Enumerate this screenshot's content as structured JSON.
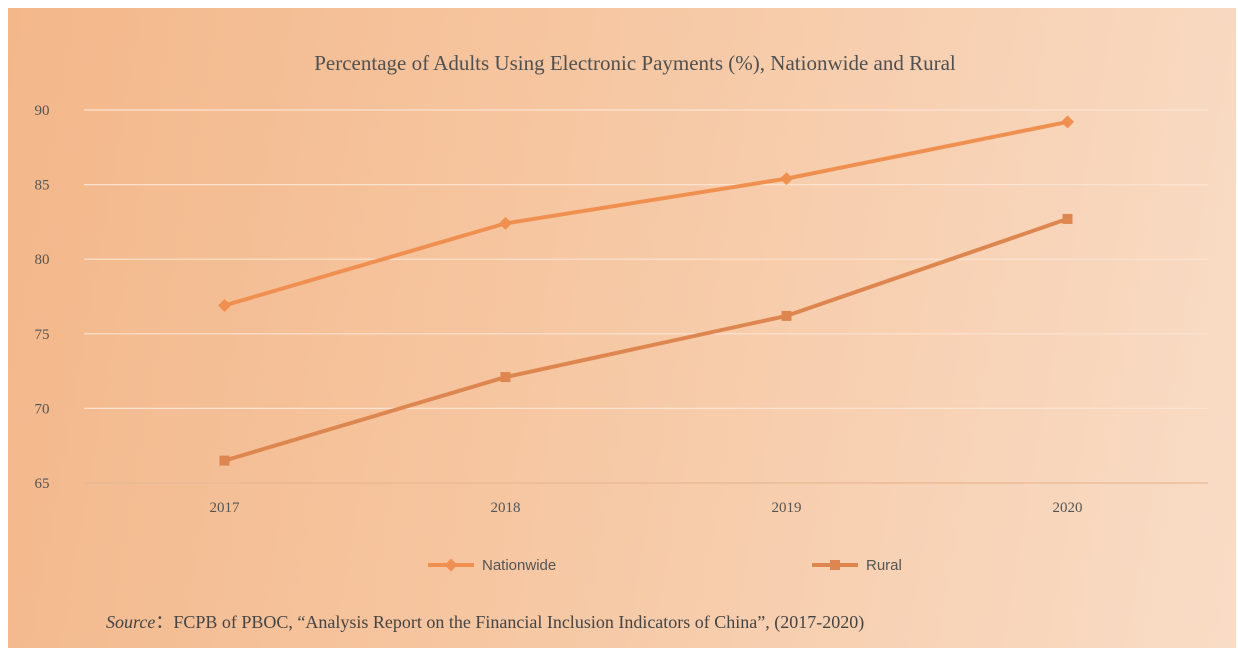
{
  "chart_data": {
    "type": "line",
    "title": "Percentage of Adults Using Electronic Payments (%), Nationwide and Rural",
    "categories": [
      "2017",
      "2018",
      "2019",
      "2020"
    ],
    "series": [
      {
        "name": "Nationwide",
        "values": [
          76.9,
          82.4,
          85.4,
          89.2
        ],
        "color": "#f09050",
        "marker": "diamond"
      },
      {
        "name": "Rural",
        "values": [
          66.5,
          72.1,
          76.2,
          82.7
        ],
        "color": "#de8650",
        "marker": "square"
      }
    ],
    "ylim": [
      65,
      90
    ],
    "yticks": [
      "65",
      "70",
      "75",
      "80",
      "85",
      "90"
    ],
    "grid": true,
    "legend": "bottom-center"
  },
  "source": {
    "label": "Source",
    "separator": "：",
    "text": "FCPB of PBOC, “Analysis Report on the Financial Inclusion Indicators of China”, (2017-2020)"
  }
}
